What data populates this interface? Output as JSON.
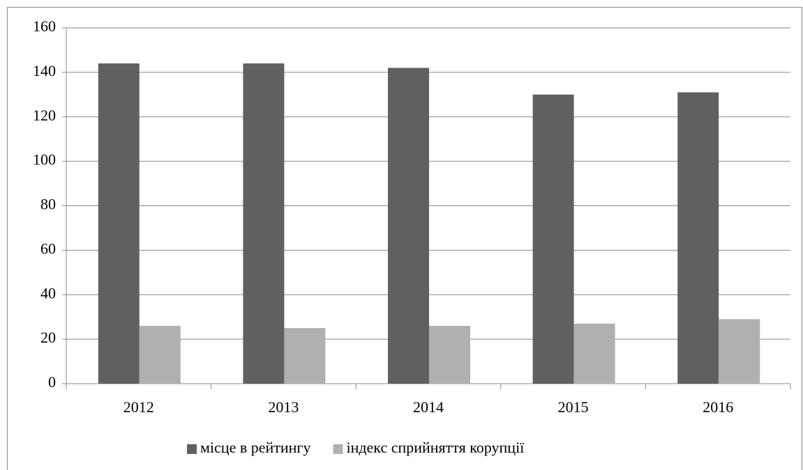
{
  "chart_data": {
    "type": "bar",
    "categories": [
      "2012",
      "2013",
      "2014",
      "2015",
      "2016"
    ],
    "series": [
      {
        "name": "місце в рейтингу",
        "color": "#606060",
        "values": [
          144,
          144,
          142,
          130,
          131
        ]
      },
      {
        "name": "індекс сприйняття корупції",
        "color": "#b0b0b0",
        "values": [
          26,
          25,
          26,
          27,
          29
        ]
      }
    ],
    "ylim": [
      0,
      160
    ],
    "yticks": [
      0,
      20,
      40,
      60,
      80,
      100,
      120,
      140,
      160
    ],
    "grid": true,
    "legend": "bottom"
  }
}
